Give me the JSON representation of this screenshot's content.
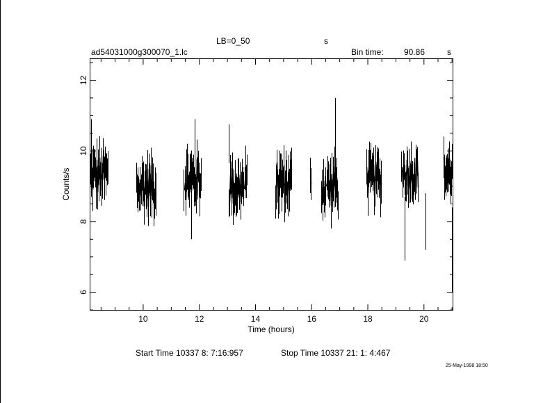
{
  "header": {
    "selection_label": "LB=0_50",
    "units_label": "s",
    "file_name": "ad54031000g300070_1.lc",
    "bin_time_label": "Bin time:",
    "bin_time_value": "90.86",
    "bin_time_unit": "s"
  },
  "footer": {
    "start_time": "Start Time 10337  8: 7:16:957",
    "stop_time": "Stop Time 10337 21: 1: 4:467",
    "stamp": "25-May-1998 18:50"
  },
  "chart_data": {
    "type": "scatter",
    "style": "error-bars",
    "xlabel": "Time (hours)",
    "ylabel": "Counts/s",
    "xlim": [
      8.12,
      21.02
    ],
    "ylim": [
      5.5,
      12.6
    ],
    "x_ticks": [
      10,
      12,
      14,
      16,
      18,
      20
    ],
    "y_ticks": [
      6,
      8,
      10,
      12
    ],
    "grid": false,
    "segments": [
      {
        "start": 8.12,
        "end": 8.75,
        "mean": 9.3,
        "amp": 0.6,
        "err": 0.5
      },
      {
        "start": 9.75,
        "end": 10.47,
        "mean": 9.0,
        "amp": 0.6,
        "err": 0.5
      },
      {
        "start": 11.45,
        "end": 12.06,
        "mean": 9.2,
        "amp": 0.6,
        "err": 0.5
      },
      {
        "start": 13.05,
        "end": 13.68,
        "mean": 9.0,
        "amp": 0.6,
        "err": 0.5
      },
      {
        "start": 14.7,
        "end": 15.3,
        "mean": 9.1,
        "amp": 0.6,
        "err": 0.5
      },
      {
        "start": 15.95,
        "end": 15.98,
        "mean": 9.2,
        "amp": 0.2,
        "err": 0.6
      },
      {
        "start": 16.35,
        "end": 16.95,
        "mean": 9.0,
        "amp": 0.6,
        "err": 0.5
      },
      {
        "start": 17.95,
        "end": 18.5,
        "mean": 9.2,
        "amp": 0.5,
        "err": 0.5
      },
      {
        "start": 19.2,
        "end": 19.8,
        "mean": 9.4,
        "amp": 0.5,
        "err": 0.5
      },
      {
        "start": 20.7,
        "end": 21.02,
        "mean": 9.4,
        "amp": 0.5,
        "err": 0.5
      }
    ],
    "outliers": [
      {
        "x": 8.15,
        "y": 9.8,
        "err": 1.1
      },
      {
        "x": 11.72,
        "y": 8.3,
        "err": 0.8
      },
      {
        "x": 11.83,
        "y": 10.1,
        "err": 0.8
      },
      {
        "x": 13.04,
        "y": 10.2,
        "err": 0.55
      },
      {
        "x": 16.84,
        "y": 10.4,
        "err": 1.1
      },
      {
        "x": 19.32,
        "y": 7.8,
        "err": 0.9
      },
      {
        "x": 20.06,
        "y": 8.0,
        "err": 0.8
      },
      {
        "x": 21.0,
        "y": 7.2,
        "err": 1.2
      }
    ]
  }
}
